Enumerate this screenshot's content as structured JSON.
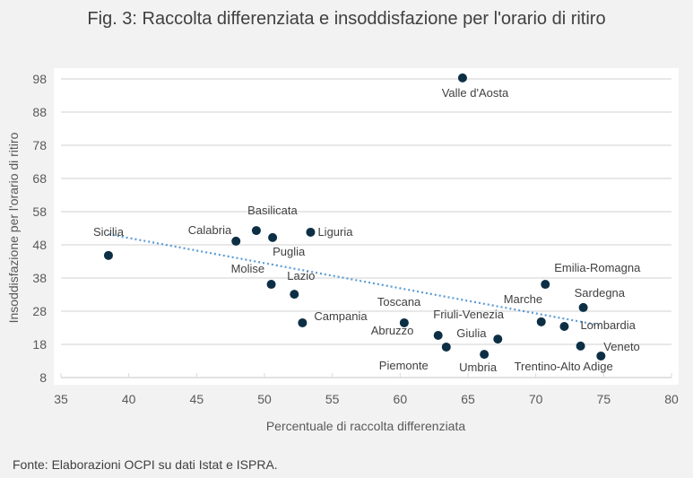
{
  "chart_data": {
    "type": "scatter",
    "title": "Fig. 3: Raccolta differenziata e insoddisfazione per l'orario di ritiro",
    "xlabel": "Percentuale di raccolta differenziata",
    "ylabel": "Insoddisfazione per l'orario di ritiro",
    "xlim": [
      35,
      80
    ],
    "ylim": [
      8,
      98
    ],
    "xticks": [
      35,
      40,
      45,
      50,
      55,
      60,
      65,
      70,
      75,
      80
    ],
    "yticks": [
      8,
      18,
      28,
      38,
      48,
      58,
      68,
      78,
      88,
      98
    ],
    "grid": "horizontal",
    "points": [
      {
        "label": "Sicilia",
        "x": 38.5,
        "y": 44.8
      },
      {
        "label": "Calabria",
        "x": 47.9,
        "y": 49.1
      },
      {
        "label": "Basilicata",
        "x": 49.4,
        "y": 52.3
      },
      {
        "label": "Puglia",
        "x": 50.6,
        "y": 50.2
      },
      {
        "label": "Liguria",
        "x": 53.4,
        "y": 51.8
      },
      {
        "label": "Molise",
        "x": 50.5,
        "y": 36.1
      },
      {
        "label": "Lazio",
        "x": 52.2,
        "y": 33.1
      },
      {
        "label": "Campania",
        "x": 52.8,
        "y": 24.5
      },
      {
        "label": "Valle d'Aosta",
        "x": 64.6,
        "y": 98.3
      },
      {
        "label": "Toscana",
        "x": 60.3,
        "y": 24.5
      },
      {
        "label": "Abruzzo",
        "x": 62.8,
        "y": 20.7
      },
      {
        "label": "Piemonte",
        "x": 63.4,
        "y": 17.2
      },
      {
        "label": "Umbria",
        "x": 66.2,
        "y": 15.0
      },
      {
        "label": "Friuli-Venezia Giulia",
        "x": 67.2,
        "y": 19.6
      },
      {
        "label": "Marche",
        "x": 70.4,
        "y": 24.8
      },
      {
        "label": "Emilia-Romagna",
        "x": 70.7,
        "y": 36.1
      },
      {
        "label": "Lombardia",
        "x": 72.1,
        "y": 23.4
      },
      {
        "label": "Sardegna",
        "x": 73.5,
        "y": 29.1
      },
      {
        "label": "Trentino-Alto Adige",
        "x": 73.3,
        "y": 17.5
      },
      {
        "label": "Veneto",
        "x": 74.8,
        "y": 14.5
      }
    ],
    "trendline": {
      "type": "linear",
      "from": [
        38.5,
        51.2
      ],
      "to": [
        74.8,
        23.7
      ]
    },
    "colors": {
      "point": "#0d2f45",
      "trend": "#5b9bd5",
      "grid": "#d9d9d9"
    }
  },
  "source": "Fonte: Elaborazioni OCPI su dati Istat e ISPRA."
}
